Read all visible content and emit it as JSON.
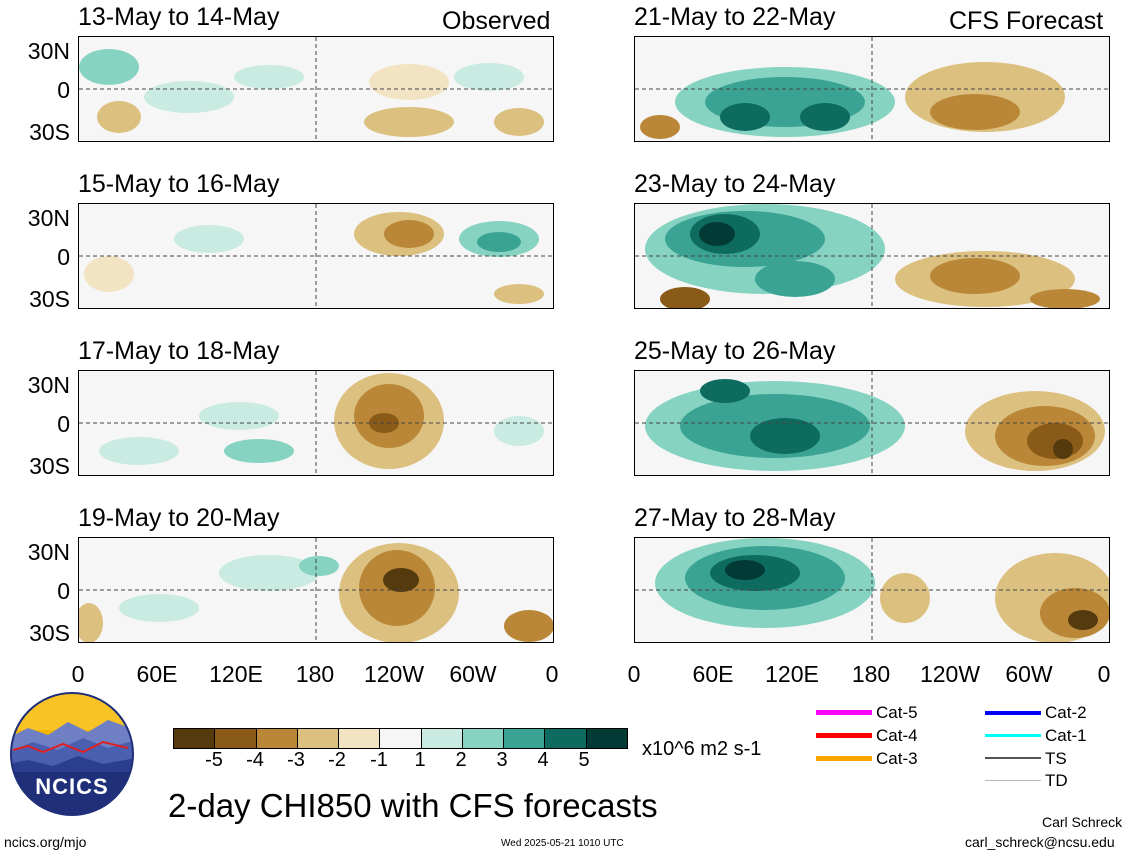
{
  "labels": {
    "observed": "Observed",
    "forecast": "CFS Forecast",
    "lat": [
      "30N",
      "0",
      "30S"
    ],
    "lon": [
      "0",
      "60E",
      "120E",
      "180",
      "120W",
      "60W",
      "0"
    ]
  },
  "panels": {
    "left": [
      {
        "title": "13-May to 14-May"
      },
      {
        "title": "15-May to 16-May"
      },
      {
        "title": "17-May to 18-May"
      },
      {
        "title": "19-May to 20-May"
      }
    ],
    "right": [
      {
        "title": "21-May to 22-May"
      },
      {
        "title": "23-May to 24-May"
      },
      {
        "title": "25-May to 26-May"
      },
      {
        "title": "27-May to 28-May"
      }
    ]
  },
  "colorbar": {
    "colors": [
      "#553a0e",
      "#8a5a18",
      "#b98737",
      "#dcc07f",
      "#f2e4c3",
      "#f6f6f6",
      "#c9ebe2",
      "#86d3c2",
      "#3ba394",
      "#0d6b60",
      "#023b35"
    ],
    "ticks": [
      "-5",
      "-4",
      "-3",
      "-2",
      "-1",
      "1",
      "2",
      "3",
      "4",
      "5"
    ],
    "units": "x10^6 m2 s-1"
  },
  "storm_legend": {
    "items": [
      {
        "label": "Cat-5",
        "color": "#ff00ff"
      },
      {
        "label": "Cat-4",
        "color": "#ff0000"
      },
      {
        "label": "Cat-3",
        "color": "#ffa500"
      },
      {
        "label": "Cat-2",
        "color": "#0000ff"
      },
      {
        "label": "Cat-1",
        "color": "#00ffff"
      },
      {
        "label": "TS",
        "color": "#555555"
      },
      {
        "label": "TD",
        "color": "#b8b8b8"
      }
    ]
  },
  "logo": {
    "text": "NCICS"
  },
  "footer": {
    "main_title": "2-day CHI850 with CFS forecasts",
    "url": "ncics.org/mjo",
    "timestamp": "Wed 2025-05-21 1010 UTC",
    "author": "Carl Schreck",
    "email": "carl_schreck@ncsu.edu"
  }
}
